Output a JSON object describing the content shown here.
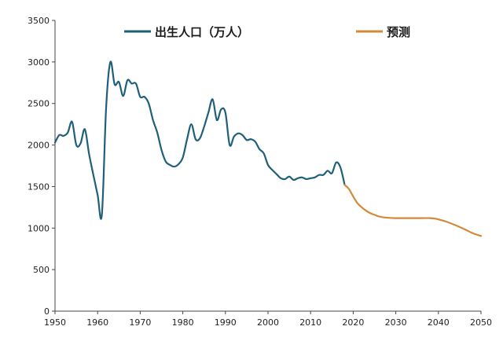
{
  "chart_data": {
    "type": "line",
    "title": "",
    "xlabel": "",
    "ylabel": "",
    "xlim": [
      1950,
      2050
    ],
    "ylim": [
      0,
      3500
    ],
    "x_ticks": [
      "1950",
      "1960",
      "1970",
      "1980",
      "1990",
      "2000",
      "2010",
      "2020",
      "2030",
      "2040",
      "2050"
    ],
    "y_ticks": [
      "0",
      "500",
      "1000",
      "1500",
      "2000",
      "2500",
      "3000",
      "3500"
    ],
    "grid": false,
    "legend_position": "top",
    "series": [
      {
        "name": "出生人口（万人）",
        "color": "#1f5f7a",
        "x": [
          1950,
          1951,
          1952,
          1953,
          1954,
          1955,
          1956,
          1957,
          1958,
          1959,
          1960,
          1961,
          1962,
          1963,
          1964,
          1965,
          1966,
          1967,
          1968,
          1969,
          1970,
          1971,
          1972,
          1973,
          1974,
          1975,
          1976,
          1977,
          1978,
          1979,
          1980,
          1981,
          1982,
          1983,
          1984,
          1985,
          1986,
          1987,
          1988,
          1989,
          1990,
          1991,
          1992,
          1993,
          1994,
          1995,
          1996,
          1997,
          1998,
          1999,
          2000,
          2001,
          2002,
          2003,
          2004,
          2005,
          2006,
          2007,
          2008,
          2009,
          2010,
          2011,
          2012,
          2013,
          2014,
          2015,
          2016,
          2017,
          2018
        ],
        "y": [
          2030,
          2120,
          2110,
          2150,
          2280,
          2000,
          2020,
          2190,
          1890,
          1640,
          1400,
          1160,
          2450,
          3000,
          2730,
          2760,
          2590,
          2780,
          2740,
          2740,
          2580,
          2580,
          2500,
          2300,
          2150,
          1940,
          1800,
          1760,
          1740,
          1770,
          1850,
          2070,
          2250,
          2070,
          2080,
          2220,
          2390,
          2550,
          2300,
          2430,
          2390,
          2000,
          2100,
          2140,
          2120,
          2060,
          2070,
          2040,
          1950,
          1900,
          1760,
          1700,
          1650,
          1600,
          1590,
          1620,
          1580,
          1600,
          1610,
          1590,
          1600,
          1610,
          1640,
          1640,
          1690,
          1660,
          1790,
          1730,
          1520
        ]
      },
      {
        "name": "预测",
        "color": "#d08a3a",
        "x": [
          2018,
          2019,
          2020,
          2021,
          2022,
          2023,
          2024,
          2025,
          2026,
          2027,
          2028,
          2030,
          2032,
          2034,
          2036,
          2038,
          2039,
          2040,
          2042,
          2044,
          2046,
          2048,
          2050
        ],
        "y": [
          1520,
          1470,
          1380,
          1300,
          1250,
          1210,
          1180,
          1160,
          1140,
          1130,
          1125,
          1120,
          1120,
          1120,
          1120,
          1120,
          1115,
          1105,
          1075,
          1035,
          990,
          940,
          905
        ]
      }
    ]
  }
}
